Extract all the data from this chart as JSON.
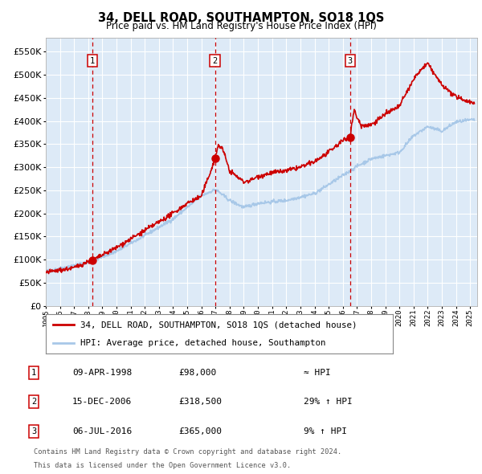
{
  "title": "34, DELL ROAD, SOUTHAMPTON, SO18 1QS",
  "subtitle": "Price paid vs. HM Land Registry's House Price Index (HPI)",
  "xlim_start": 1995.0,
  "xlim_end": 2025.5,
  "ylim_min": 0,
  "ylim_max": 580000,
  "yticks": [
    0,
    50000,
    100000,
    150000,
    200000,
    250000,
    300000,
    350000,
    400000,
    450000,
    500000,
    550000
  ],
  "ytick_labels": [
    "£0",
    "£50K",
    "£100K",
    "£150K",
    "£200K",
    "£250K",
    "£300K",
    "£350K",
    "£400K",
    "£450K",
    "£500K",
    "£550K"
  ],
  "hpi_line_color": "#a8c8e8",
  "price_line_color": "#cc0000",
  "vline_color": "#cc0000",
  "bg_color": "#ddeaf7",
  "grid_color": "#ffffff",
  "sale_dates": [
    1998.275,
    2006.958,
    2016.51
  ],
  "sale_prices": [
    98000,
    318500,
    365000
  ],
  "sale_labels": [
    "1",
    "2",
    "3"
  ],
  "legend_line1": "34, DELL ROAD, SOUTHAMPTON, SO18 1QS (detached house)",
  "legend_line2": "HPI: Average price, detached house, Southampton",
  "table_rows": [
    [
      "1",
      "09-APR-1998",
      "£98,000",
      "≈ HPI"
    ],
    [
      "2",
      "15-DEC-2006",
      "£318,500",
      "29% ↑ HPI"
    ],
    [
      "3",
      "06-JUL-2016",
      "£365,000",
      "9% ↑ HPI"
    ]
  ],
  "footnote1": "Contains HM Land Registry data © Crown copyright and database right 2024.",
  "footnote2": "This data is licensed under the Open Government Licence v3.0.",
  "hpi_anchors_x": [
    1995,
    1998,
    2000,
    2002,
    2004,
    2006,
    2007,
    2008,
    2009,
    2010,
    2012,
    2014,
    2016,
    2017,
    2018,
    2020,
    2021,
    2022,
    2023,
    2024,
    2025.3
  ],
  "hpi_anchors_y": [
    74000,
    94000,
    118000,
    152000,
    188000,
    238000,
    252000,
    228000,
    213000,
    222000,
    228000,
    243000,
    282000,
    302000,
    318000,
    332000,
    368000,
    388000,
    378000,
    398000,
    403000
  ],
  "price_anchors_x": [
    1995,
    1997,
    1998.0,
    1998.275,
    1998.6,
    2000,
    2002,
    2004,
    2005,
    2006,
    2006.7,
    2006.958,
    2007.2,
    2007.5,
    2008,
    2009,
    2009.5,
    2010,
    2011,
    2012,
    2013,
    2014,
    2015,
    2016.0,
    2016.51,
    2016.8,
    2017.0,
    2017.3,
    2018,
    2019,
    2020,
    2021,
    2021.5,
    2022,
    2022.3,
    2023,
    2024,
    2025,
    2025.3
  ],
  "price_anchors_y": [
    72000,
    82000,
    96000,
    98000,
    103000,
    126000,
    163000,
    200000,
    222000,
    237000,
    295000,
    318500,
    348000,
    340000,
    292000,
    268000,
    272000,
    280000,
    288000,
    292000,
    300000,
    312000,
    332000,
    358000,
    365000,
    425000,
    408000,
    390000,
    392000,
    415000,
    432000,
    490000,
    510000,
    525000,
    510000,
    478000,
    452000,
    442000,
    438000
  ]
}
